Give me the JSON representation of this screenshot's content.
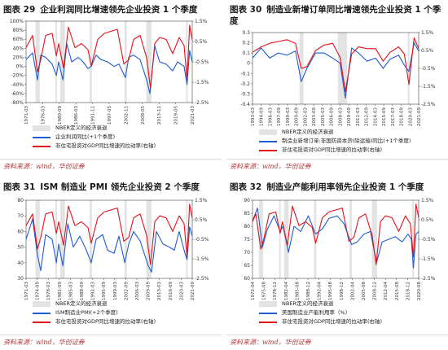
{
  "colors": {
    "blue": "#1f5bd1",
    "red": "#e2111c",
    "band": "#e3e3e3"
  },
  "source_text": "资料来源：wind，华创证券",
  "chart_data": [
    {
      "type": "line",
      "fig_no": "图表 29",
      "title": "企业利润同比增速领先企业投资 1 个季度",
      "xticks": [
        "1971-03",
        "1976-03",
        "1980-09",
        "1986-03",
        "1991-11",
        "1997-05",
        "2002-11",
        "2008-05",
        "2013-11",
        "2019-05",
        "2021-03"
      ],
      "x_range": [
        1971,
        2022
      ],
      "left_axis": {
        "ticks": [
          "100%",
          "80%",
          "60%",
          "40%",
          "20%",
          "0%",
          "-20%",
          "-40%",
          "-60%",
          "-80%"
        ],
        "min": -0.8,
        "max": 1.0
      },
      "right_axis": {
        "ticks": [
          "1.5%",
          "0.5%",
          "-0.5%",
          "-1.5%",
          "-2.5%"
        ],
        "min": -0.025,
        "max": 0.015
      },
      "bands": [
        [
          1973.9,
          1975.2
        ],
        [
          1980.0,
          1980.5
        ],
        [
          1981.5,
          1982.9
        ],
        [
          1990.5,
          1991.2
        ],
        [
          2001.2,
          2001.9
        ],
        [
          2007.9,
          2009.5
        ],
        [
          2020.1,
          2020.4
        ]
      ],
      "legend": [
        "NBER定义的经济衰退",
        "企业利润同比(+1个季度)",
        "非住宅投资对GDP同比增速的拉动率(右轴)"
      ],
      "series": [
        {
          "axis": "left",
          "color_key": "blue",
          "x": [
            1971,
            1973,
            1974.5,
            1975.5,
            1977,
            1979,
            1980.3,
            1981,
            1982.3,
            1983.5,
            1985,
            1987,
            1988.5,
            1990,
            1991,
            1992.5,
            1994,
            1996,
            1998,
            1999.5,
            2001.5,
            2002.5,
            2004,
            2006,
            2008,
            2009,
            2010.5,
            2012,
            2014,
            2016,
            2017.5,
            2019.5,
            2020.4,
            2021.2,
            2022
          ],
          "values": [
            0.15,
            0.3,
            -0.3,
            0.25,
            0.2,
            0.05,
            -0.2,
            0.1,
            -0.3,
            0.5,
            0.1,
            0.2,
            0.1,
            -0.05,
            0.0,
            0.25,
            0.15,
            0.1,
            0.0,
            0.05,
            -0.25,
            0.2,
            0.25,
            0.15,
            -0.3,
            -0.6,
            0.45,
            0.1,
            0.05,
            -0.1,
            0.1,
            0.0,
            -0.4,
            0.35,
            0.1
          ]
        },
        {
          "axis": "right",
          "color_key": "red",
          "x": [
            1971,
            1973,
            1974.5,
            1975.5,
            1977,
            1979,
            1980.3,
            1981,
            1982.5,
            1984,
            1986,
            1988,
            1990,
            1991,
            1993,
            1995,
            1997,
            1999,
            2001,
            2002.5,
            2004,
            2006,
            2008,
            2009.2,
            2010.5,
            2012,
            2014,
            2016,
            2018,
            2019.5,
            2020.4,
            2021.2,
            2022
          ],
          "values": [
            0.002,
            0.008,
            -0.01,
            -0.004,
            0.008,
            0.009,
            -0.002,
            0.004,
            -0.008,
            0.012,
            0.002,
            0.004,
            0.001,
            -0.007,
            0.006,
            0.009,
            0.01,
            0.011,
            -0.006,
            -0.004,
            0.006,
            0.008,
            -0.003,
            -0.018,
            0.004,
            0.007,
            0.006,
            -0.001,
            0.007,
            0.003,
            -0.014,
            0.013,
            0.006
          ]
        }
      ]
    },
    {
      "type": "line",
      "fig_no": "图表 30",
      "title": "制造业新增订单同比增速领先企业投资 1 个季度",
      "xticks": [
        "1993-03",
        "1994-09",
        "1996-03",
        "1997-09",
        "1999-03",
        "2000-09",
        "2002-03",
        "2003-09",
        "2005-03",
        "2006-09",
        "2008-03",
        "2009-09",
        "2011-03",
        "2012-09",
        "2014-03",
        "2015-09",
        "2017-03",
        "2018-09",
        "2020-03",
        "2021-09"
      ],
      "x_range": [
        1993,
        2022
      ],
      "left_axis": {
        "ticks": [
          "0.3",
          "0.2",
          "0.1",
          "0",
          "-0.1",
          "-0.2",
          "-0.3",
          "-0.4"
        ],
        "min": -0.4,
        "max": 0.3
      },
      "right_axis": {
        "ticks": [
          "1.5%",
          "0.5%",
          "-0.5%",
          "-1.5%",
          "-2.5%"
        ],
        "min": -0.025,
        "max": 0.015
      },
      "bands": [
        [
          2001.2,
          2001.9
        ],
        [
          2007.9,
          2009.5
        ],
        [
          2020.1,
          2020.4
        ]
      ],
      "legend": [
        "NBER定义的经济衰退",
        "制造业新增订单:非国防资本货(除运输)同比(+1个季度)",
        "非住宅投资对GDP同比增速的拉动率(右轴)"
      ],
      "series": [
        {
          "axis": "left",
          "color_key": "blue",
          "x": [
            1993,
            1994.5,
            1996,
            1997.5,
            1999,
            2000.5,
            2001.5,
            2002.5,
            2004,
            2005.5,
            2007,
            2008.3,
            2009.2,
            2010.3,
            2011.5,
            2013,
            2014.5,
            2015.8,
            2017,
            2018.5,
            2019.5,
            2020.3,
            2021.2,
            2022
          ],
          "values": [
            0.05,
            0.15,
            0.05,
            0.1,
            0.08,
            0.12,
            -0.18,
            -0.05,
            0.1,
            0.1,
            0.05,
            0.0,
            -0.34,
            0.15,
            0.1,
            0.02,
            0.05,
            -0.05,
            0.04,
            0.08,
            -0.02,
            -0.08,
            0.2,
            0.12
          ]
        },
        {
          "axis": "right",
          "color_key": "red",
          "x": [
            1993,
            1994.5,
            1996,
            1997.5,
            1999,
            2000.5,
            2001.5,
            2002.5,
            2004,
            2005.5,
            2007,
            2008.3,
            2009.2,
            2010.3,
            2011.5,
            2013,
            2014.5,
            2015.8,
            2017,
            2018.5,
            2019.5,
            2020.3,
            2021.2,
            2022
          ],
          "values": [
            0.004,
            0.007,
            0.009,
            0.01,
            0.011,
            0.009,
            -0.005,
            -0.004,
            0.005,
            0.008,
            0.009,
            0.001,
            -0.018,
            0.003,
            0.007,
            0.006,
            0.006,
            -0.001,
            0.004,
            0.007,
            0.003,
            -0.014,
            0.012,
            0.006
          ]
        }
      ]
    },
    {
      "type": "line",
      "fig_no": "图表 31",
      "title": "ISM 制造业 PMI 领先企业投资 2 个季度",
      "xticks": [
        "1971-03",
        "1974-09",
        "1978-03",
        "1981-09",
        "1985-03",
        "1988-09",
        "1992-03",
        "1995-09",
        "1999-03",
        "2002-09",
        "2006-03",
        "2009-09",
        "2013-03",
        "2016-09",
        "2020-03",
        "2021-09"
      ],
      "x_range": [
        1971,
        2022
      ],
      "left_axis": {
        "ticks": [
          "80",
          "70",
          "60",
          "50",
          "40",
          "30"
        ],
        "min": 30,
        "max": 80
      },
      "right_axis": {
        "ticks": [
          "1.5%",
          "0.5%",
          "-0.5%",
          "-1.5%",
          "-2.5%"
        ],
        "min": -0.025,
        "max": 0.015
      },
      "bands": [
        [
          1973.9,
          1975.2
        ],
        [
          1980.0,
          1980.5
        ],
        [
          1981.5,
          1982.9
        ],
        [
          1990.5,
          1991.2
        ],
        [
          2001.2,
          2001.9
        ],
        [
          2007.9,
          2009.5
        ],
        [
          2020.1,
          2020.4
        ]
      ],
      "legend": [
        "NBER定义的经济衰退",
        "ISM制造业PMI(+2个季度)",
        "非住宅投资对GDP同比增速的拉动率(右轴)"
      ],
      "series": [
        {
          "axis": "left",
          "color_key": "blue",
          "x": [
            1971,
            1973,
            1974.5,
            1975.5,
            1977,
            1979,
            1980.3,
            1981,
            1982.3,
            1983.8,
            1985.5,
            1987.5,
            1989.5,
            1991,
            1992.5,
            1994.5,
            1996,
            1998,
            1999.5,
            2001.3,
            2002.5,
            2004,
            2006,
            2008.5,
            2009.5,
            2011,
            2013,
            2015,
            2016.5,
            2018,
            2019.5,
            2020.4,
            2021.2,
            2022
          ],
          "values": [
            55,
            68,
            45,
            35,
            58,
            55,
            40,
            52,
            38,
            65,
            50,
            57,
            48,
            40,
            55,
            58,
            48,
            46,
            57,
            40,
            52,
            60,
            54,
            38,
            34,
            60,
            52,
            50,
            48,
            60,
            48,
            42,
            63,
            57
          ]
        },
        {
          "axis": "right",
          "color_key": "red",
          "x": [
            1971,
            1973,
            1974.5,
            1975.5,
            1977,
            1979,
            1980.3,
            1981,
            1982.5,
            1984,
            1986,
            1988,
            1990,
            1991,
            1993,
            1995,
            1997,
            1999,
            2001,
            2002.5,
            2004,
            2006,
            2008,
            2009.2,
            2010.5,
            2012,
            2014,
            2016,
            2018,
            2019.5,
            2020.4,
            2021.2,
            2022
          ],
          "values": [
            0.002,
            0.008,
            -0.01,
            -0.004,
            0.008,
            0.009,
            -0.002,
            0.004,
            -0.008,
            0.012,
            0.002,
            0.004,
            0.001,
            -0.007,
            0.006,
            0.009,
            0.01,
            0.011,
            -0.006,
            -0.004,
            0.006,
            0.008,
            -0.003,
            -0.018,
            0.004,
            0.007,
            0.006,
            -0.001,
            0.007,
            0.003,
            -0.014,
            0.013,
            0.006
          ]
        }
      ]
    },
    {
      "type": "line",
      "fig_no": "图表 32",
      "title": "制造业产能利用率领先企业投资 1 个季度",
      "xticks": [
        "1972-04",
        "1975-08",
        "1978-12",
        "1982-04",
        "1985-08",
        "1988-12",
        "1992-04",
        "1995-08",
        "1998-12",
        "2002-04",
        "2005-08",
        "2008-12",
        "2012-04",
        "2015-08",
        "2018-12",
        "2020-08"
      ],
      "x_range": [
        1972,
        2022
      ],
      "left_axis": {
        "ticks": [
          "90",
          "85",
          "80",
          "75",
          "70",
          "65",
          "60"
        ],
        "min": 60,
        "max": 90
      },
      "right_axis": {
        "ticks": [
          "1.5%",
          "0.5%",
          "-0.5%",
          "-1.5%",
          "-2.5%"
        ],
        "min": -0.025,
        "max": 0.015
      },
      "bands": [
        [
          1973.9,
          1975.2
        ],
        [
          1980.0,
          1980.5
        ],
        [
          1981.5,
          1982.9
        ],
        [
          1990.5,
          1991.2
        ],
        [
          2001.2,
          2001.9
        ],
        [
          2007.9,
          2009.5
        ],
        [
          2020.1,
          2020.4
        ]
      ],
      "legend": [
        "NBER定义的经济衰退",
        "美国制造业产能利用率（%）",
        "非住宅投资对GDP同比增速的拉动率(右轴)"
      ],
      "series": [
        {
          "axis": "left",
          "color_key": "blue",
          "x": [
            1972,
            1973.5,
            1975,
            1976.5,
            1978.5,
            1980.3,
            1981.2,
            1982.8,
            1984.5,
            1986.5,
            1988.8,
            1991,
            1993,
            1995,
            1997.5,
            1999.5,
            2001.8,
            2003.5,
            2005.5,
            2007.5,
            2009.3,
            2011,
            2013,
            2015,
            2017,
            2018.8,
            2019.8,
            2020.4,
            2021.2,
            2022
          ],
          "values": [
            82,
            87,
            72,
            79,
            84,
            78,
            80,
            70,
            80,
            78,
            84,
            77,
            79,
            83,
            84,
            81,
            73,
            74,
            77,
            78,
            66,
            74,
            75,
            76,
            74,
            77,
            75,
            64,
            77,
            78
          ]
        },
        {
          "axis": "right",
          "color_key": "red",
          "x": [
            1972,
            1973,
            1974.5,
            1975.5,
            1977,
            1979,
            1980.3,
            1981,
            1982.5,
            1984,
            1986,
            1988,
            1990,
            1991,
            1993,
            1995,
            1997,
            1999,
            2001,
            2002.5,
            2004,
            2006,
            2008,
            2009.2,
            2010.5,
            2012,
            2014,
            2016,
            2018,
            2019.5,
            2020.4,
            2021.2,
            2022
          ],
          "values": [
            0.004,
            0.008,
            -0.01,
            -0.004,
            0.008,
            0.009,
            -0.002,
            0.004,
            -0.008,
            0.012,
            0.002,
            0.004,
            0.001,
            -0.007,
            0.006,
            0.009,
            0.01,
            0.011,
            -0.006,
            -0.004,
            0.006,
            0.008,
            -0.003,
            -0.018,
            0.004,
            0.007,
            0.006,
            -0.001,
            0.007,
            0.003,
            -0.014,
            0.013,
            0.006
          ]
        }
      ]
    }
  ]
}
